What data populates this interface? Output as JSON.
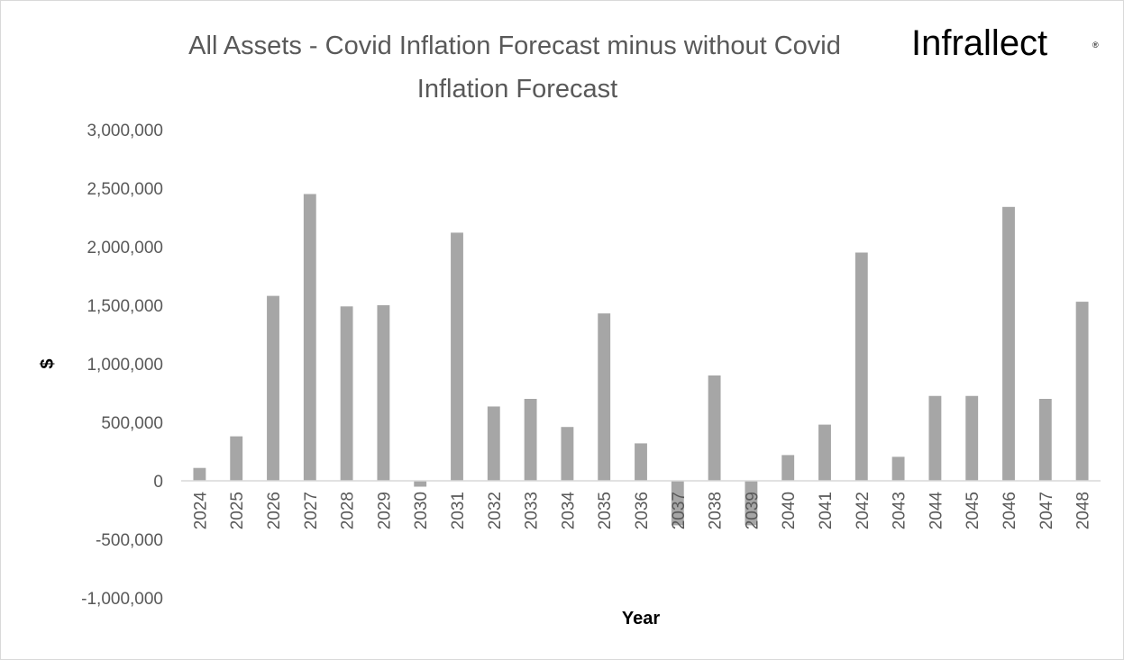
{
  "logo": {
    "text": "Infrallect",
    "mark": "®"
  },
  "colors": {
    "bar": "#a6a6a6",
    "axis": "#d9d9d9",
    "text": "#595959"
  },
  "chart_data": {
    "type": "bar",
    "title_line1": "All Assets - Covid Inflation Forecast minus without Covid",
    "title_line2": "Inflation Forecast",
    "xlabel": "Year",
    "ylabel": "$",
    "ylim": [
      -1000000,
      3000000
    ],
    "yticks": [
      3000000,
      2500000,
      2000000,
      1500000,
      1000000,
      500000,
      0,
      -500000,
      -1000000
    ],
    "ytick_labels": [
      "3,000,000",
      "2,500,000",
      "2,000,000",
      "1,500,000",
      "1,000,000",
      "500,000",
      "0",
      "-500,000",
      "-1,000,000"
    ],
    "grid": false,
    "legend": "none",
    "categories": [
      "2024",
      "2025",
      "2026",
      "2027",
      "2028",
      "2029",
      "2030",
      "2031",
      "2032",
      "2033",
      "2034",
      "2035",
      "2036",
      "2037",
      "2038",
      "2039",
      "2040",
      "2041",
      "2042",
      "2043",
      "2044",
      "2045",
      "2046",
      "2047",
      "2048"
    ],
    "values": [
      110000,
      380000,
      1580000,
      2450000,
      1490000,
      1500000,
      -50000,
      2120000,
      635000,
      700000,
      460000,
      1430000,
      320000,
      -380000,
      900000,
      -380000,
      220000,
      480000,
      1950000,
      205000,
      725000,
      725000,
      2340000,
      700000,
      1530000
    ]
  }
}
